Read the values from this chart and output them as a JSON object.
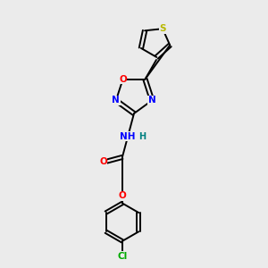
{
  "background_color": "#ebebeb",
  "bond_color": "#000000",
  "figsize": [
    3.0,
    3.0
  ],
  "dpi": 100,
  "atom_colors": {
    "O": "#ff0000",
    "N": "#0000ff",
    "S": "#b8b800",
    "Cl": "#00aa00",
    "C": "#000000",
    "H": "#008080"
  },
  "lw": 1.4
}
